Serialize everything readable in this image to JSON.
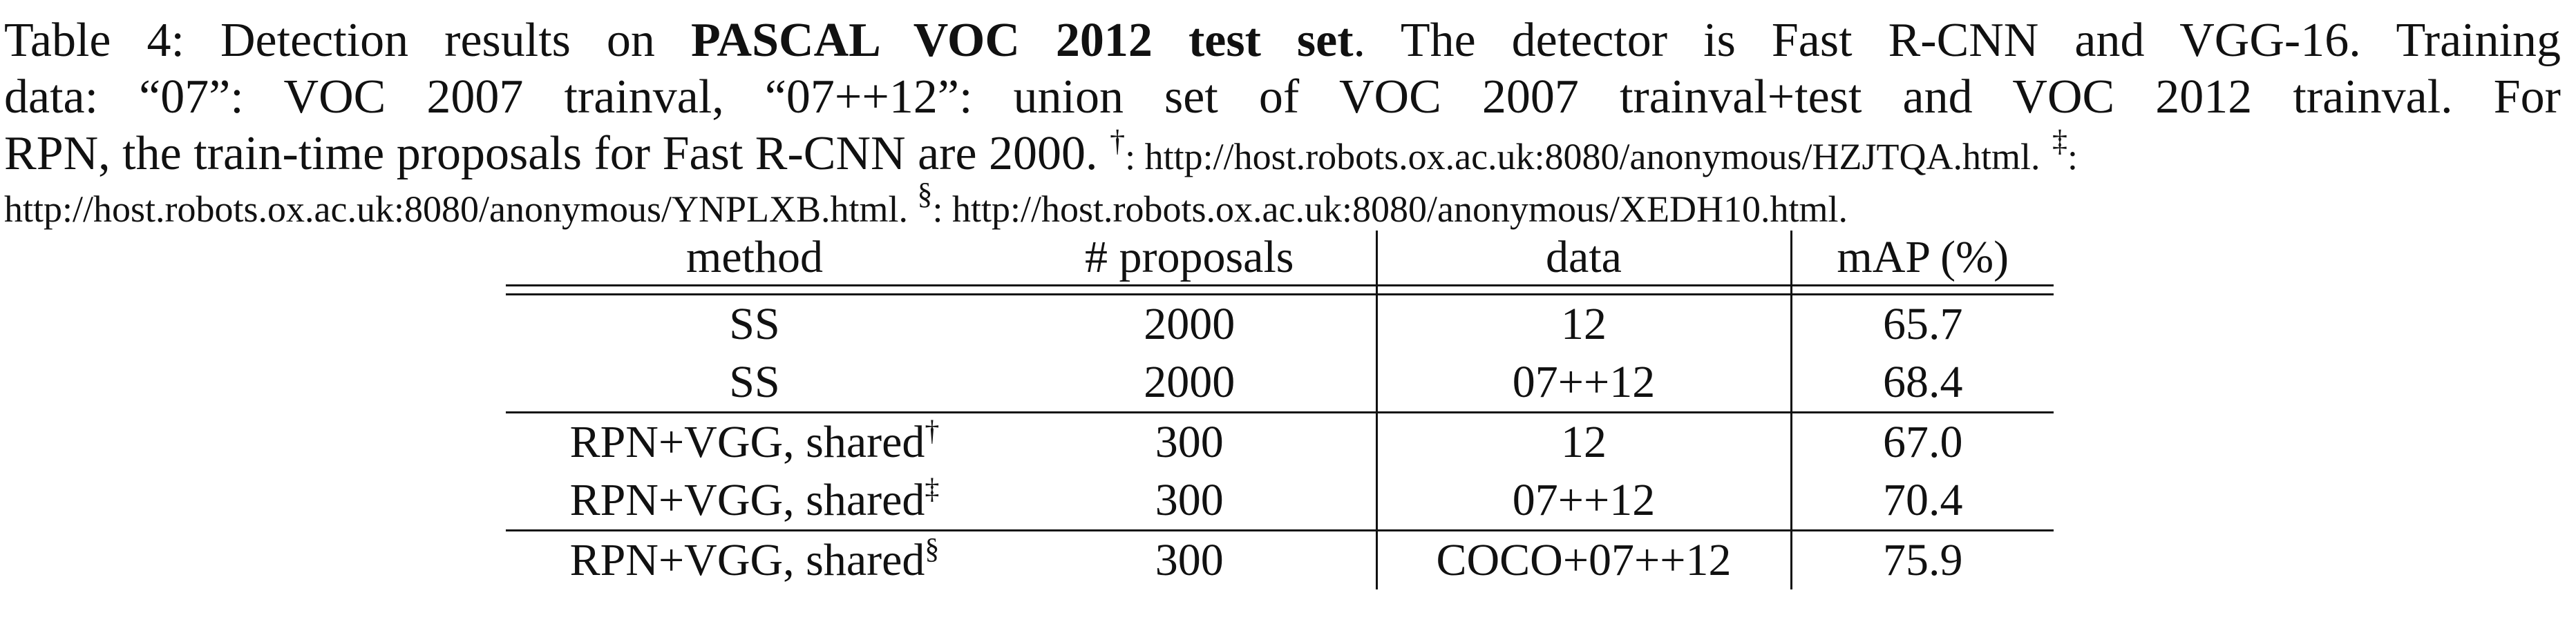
{
  "caption": {
    "label": "Table 4:",
    "text_pre": "Detection results on",
    "bold_part": "PASCAL VOC 2012 test set",
    "text_post_line1": ". The detector is Fast R-CNN and VGG-16. Training",
    "line2": "data: “07”: VOC 2007 trainval, “07++12”: union set of VOC 2007 trainval+test and VOC 2012 trainval. For",
    "line3_main": "RPN, the train-time proposals for Fast R-CNN are 2000.",
    "mark1": "†",
    "url1": ": http://host.robots.ox.ac.uk:8080/anonymous/HZJTQA.html.",
    "mark2": "‡",
    "mark2_suffix": ":",
    "url2": "http://host.robots.ox.ac.uk:8080/anonymous/YNPLXB.html.",
    "mark3": "§",
    "url3": ": http://host.robots.ox.ac.uk:8080/anonymous/XEDH10.html."
  },
  "table": {
    "headers": [
      "method",
      "# proposals",
      "data",
      "mAP (%)"
    ],
    "rows": [
      {
        "method": "SS",
        "sup": "",
        "proposals": "2000",
        "data": "12",
        "map": "65.7",
        "bold": false
      },
      {
        "method": "SS",
        "sup": "",
        "proposals": "2000",
        "data": "07++12",
        "map": "68.4",
        "bold": false
      },
      {
        "method": "RPN+VGG, shared",
        "sup": "†",
        "proposals": "300",
        "data": "12",
        "map": "67.0",
        "bold": false
      },
      {
        "method": "RPN+VGG, shared",
        "sup": "‡",
        "proposals": "300",
        "data": "07++12",
        "map": "70.4",
        "bold": true
      },
      {
        "method": "RPN+VGG, shared",
        "sup": "§",
        "proposals": "300",
        "data": "COCO+07++12",
        "map": "75.9",
        "bold": true
      }
    ]
  }
}
